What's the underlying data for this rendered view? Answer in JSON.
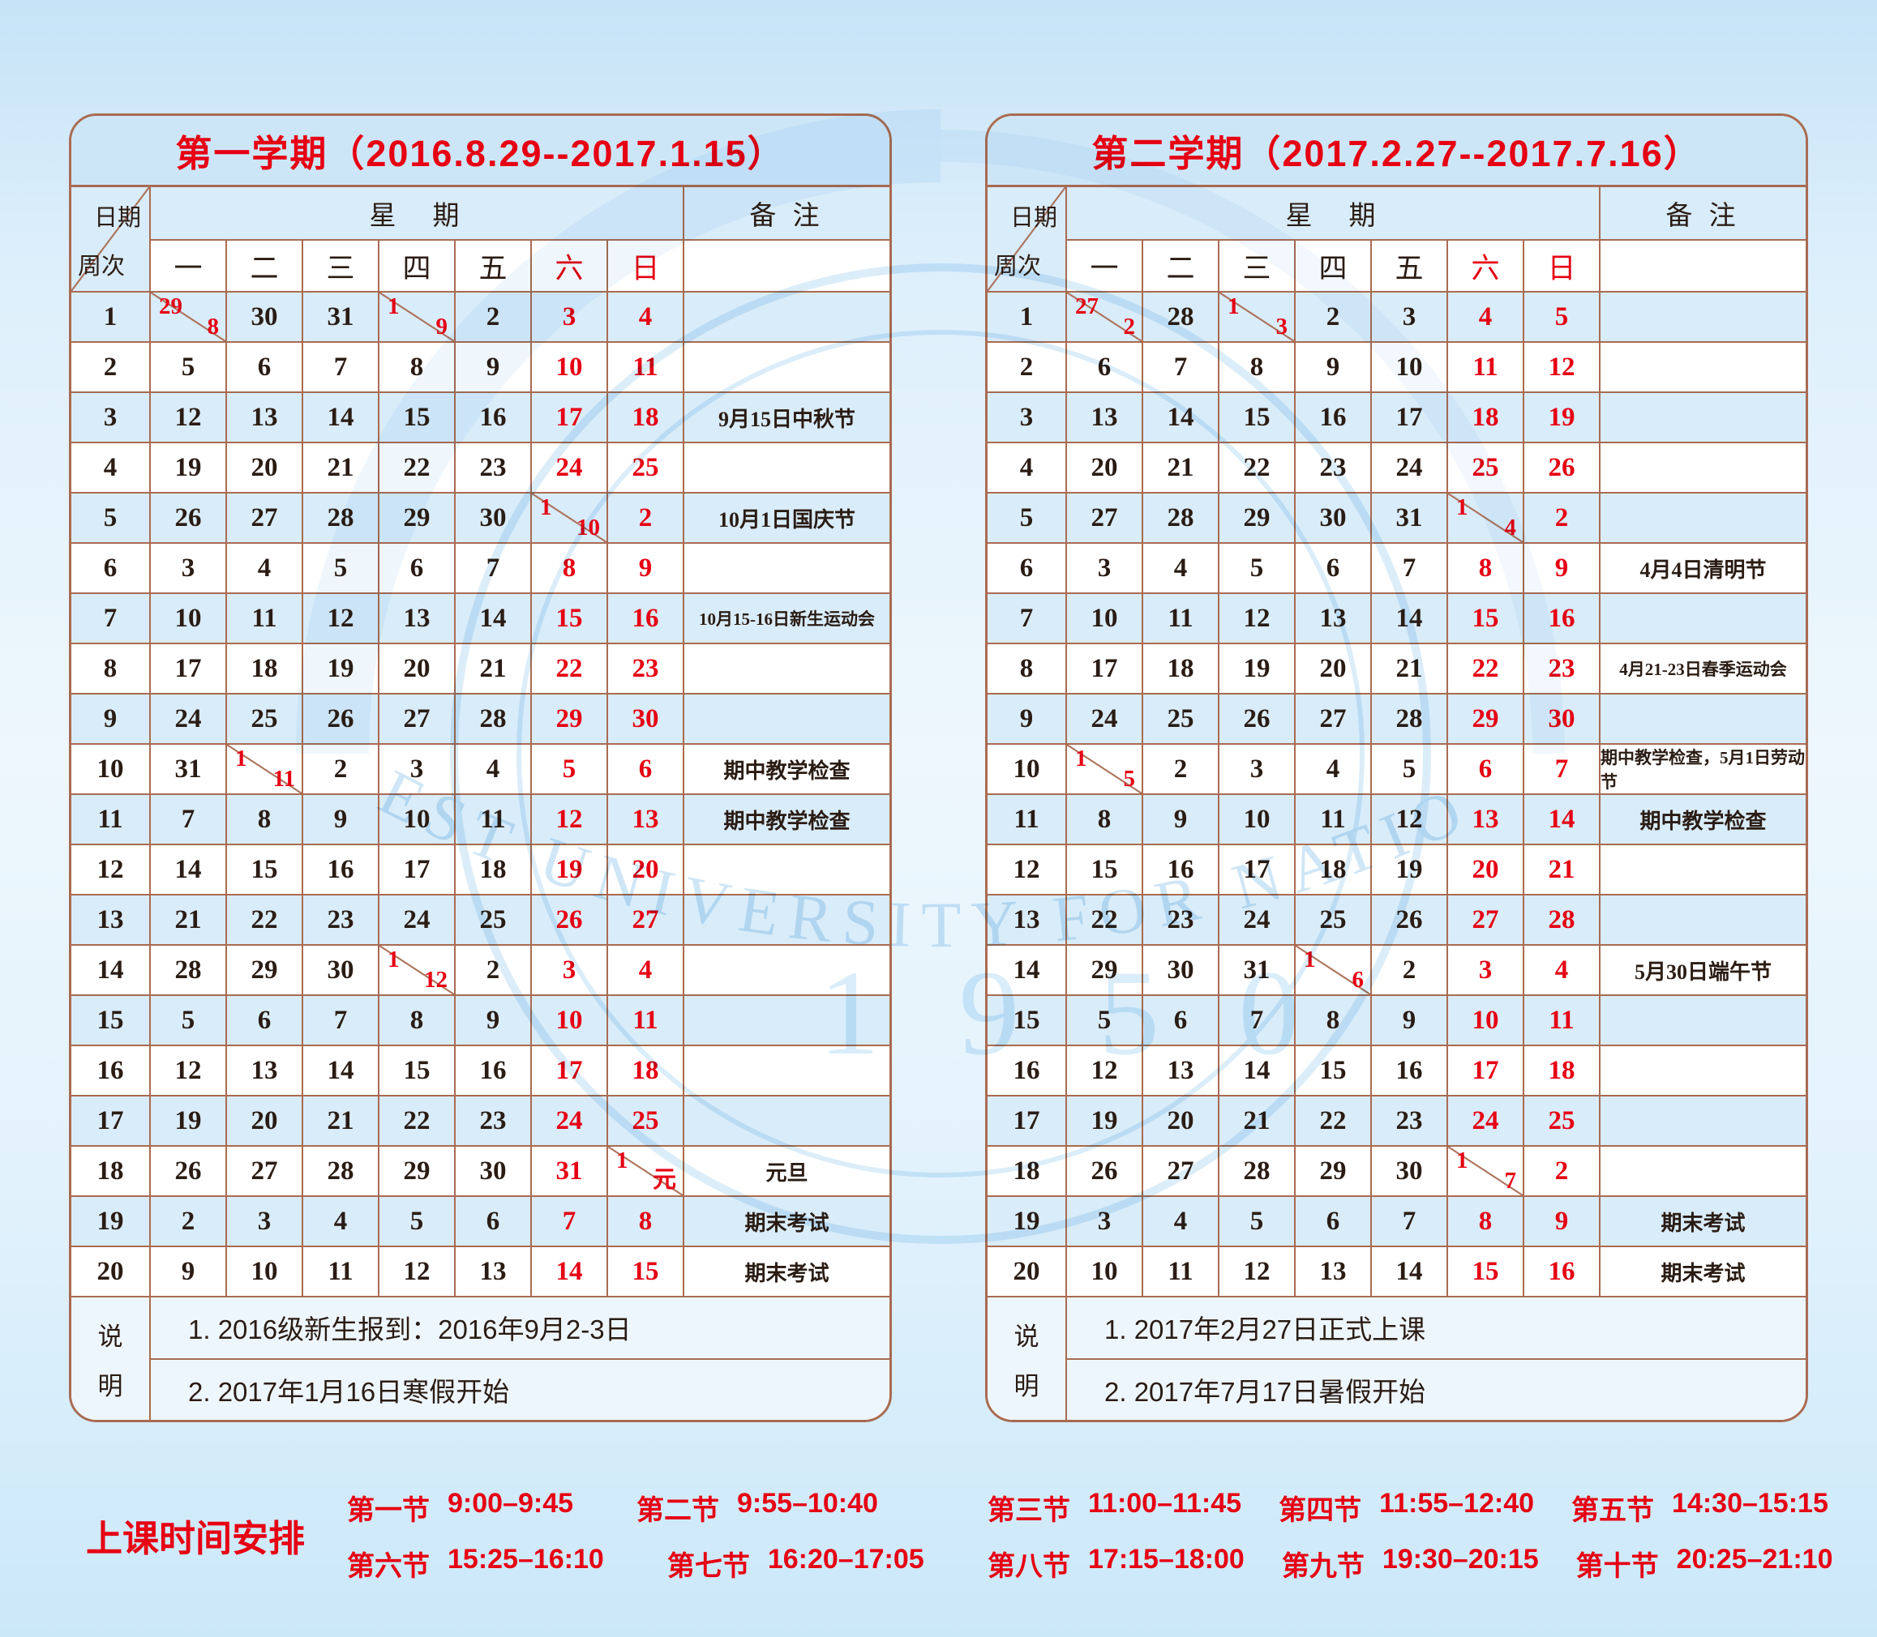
{
  "table_header": {
    "date_label": "日期",
    "week_label": "周次",
    "week_header": "星　期",
    "note_header": "备 注",
    "days": [
      "一",
      "二",
      "三",
      "四",
      "五",
      "六",
      "日"
    ],
    "notes_label_chars": [
      "说",
      "明"
    ]
  },
  "semester1": {
    "title": "第一学期（2016.8.29--2017.1.15）",
    "weeks": [
      {
        "week": "1",
        "days": [
          "29/8",
          "30",
          "31",
          "1/9",
          "2",
          "3",
          "4"
        ],
        "note": ""
      },
      {
        "week": "2",
        "days": [
          "5",
          "6",
          "7",
          "8",
          "9",
          "10",
          "11"
        ],
        "note": ""
      },
      {
        "week": "3",
        "days": [
          "12",
          "13",
          "14",
          "15",
          "16",
          "17",
          "18"
        ],
        "note": "9月15日中秋节"
      },
      {
        "week": "4",
        "days": [
          "19",
          "20",
          "21",
          "22",
          "23",
          "24",
          "25"
        ],
        "note": ""
      },
      {
        "week": "5",
        "days": [
          "26",
          "27",
          "28",
          "29",
          "30",
          "1/10",
          "2"
        ],
        "note": "10月1日国庆节"
      },
      {
        "week": "6",
        "days": [
          "3",
          "4",
          "5",
          "6",
          "7",
          "8",
          "9"
        ],
        "note": ""
      },
      {
        "week": "7",
        "days": [
          "10",
          "11",
          "12",
          "13",
          "14",
          "15",
          "16"
        ],
        "note": "10月15-16日新生运动会"
      },
      {
        "week": "8",
        "days": [
          "17",
          "18",
          "19",
          "20",
          "21",
          "22",
          "23"
        ],
        "note": ""
      },
      {
        "week": "9",
        "days": [
          "24",
          "25",
          "26",
          "27",
          "28",
          "29",
          "30"
        ],
        "note": ""
      },
      {
        "week": "10",
        "days": [
          "31",
          "1/11",
          "2",
          "3",
          "4",
          "5",
          "6"
        ],
        "note": "期中教学检查"
      },
      {
        "week": "11",
        "days": [
          "7",
          "8",
          "9",
          "10",
          "11",
          "12",
          "13"
        ],
        "note": "期中教学检查"
      },
      {
        "week": "12",
        "days": [
          "14",
          "15",
          "16",
          "17",
          "18",
          "19",
          "20"
        ],
        "note": ""
      },
      {
        "week": "13",
        "days": [
          "21",
          "22",
          "23",
          "24",
          "25",
          "26",
          "27"
        ],
        "note": ""
      },
      {
        "week": "14",
        "days": [
          "28",
          "29",
          "30",
          "1/12",
          "2",
          "3",
          "4"
        ],
        "note": ""
      },
      {
        "week": "15",
        "days": [
          "5",
          "6",
          "7",
          "8",
          "9",
          "10",
          "11"
        ],
        "note": ""
      },
      {
        "week": "16",
        "days": [
          "12",
          "13",
          "14",
          "15",
          "16",
          "17",
          "18"
        ],
        "note": ""
      },
      {
        "week": "17",
        "days": [
          "19",
          "20",
          "21",
          "22",
          "23",
          "24",
          "25"
        ],
        "note": ""
      },
      {
        "week": "18",
        "days": [
          "26",
          "27",
          "28",
          "29",
          "30",
          "31",
          "1/元"
        ],
        "note": "元旦"
      },
      {
        "week": "19",
        "days": [
          "2",
          "3",
          "4",
          "5",
          "6",
          "7",
          "8"
        ],
        "note": "期末考试"
      },
      {
        "week": "20",
        "days": [
          "9",
          "10",
          "11",
          "12",
          "13",
          "14",
          "15"
        ],
        "note": "期末考试"
      }
    ],
    "notes": [
      "1. 2016级新生报到：2016年9月2-3日",
      "2. 2017年1月16日寒假开始"
    ]
  },
  "semester2": {
    "title": "第二学期（2017.2.27--2017.7.16）",
    "weeks": [
      {
        "week": "1",
        "days": [
          "27/2",
          "28",
          "1/3",
          "2",
          "3",
          "4",
          "5"
        ],
        "note": ""
      },
      {
        "week": "2",
        "days": [
          "6",
          "7",
          "8",
          "9",
          "10",
          "11",
          "12"
        ],
        "note": ""
      },
      {
        "week": "3",
        "days": [
          "13",
          "14",
          "15",
          "16",
          "17",
          "18",
          "19"
        ],
        "note": ""
      },
      {
        "week": "4",
        "days": [
          "20",
          "21",
          "22",
          "23",
          "24",
          "25",
          "26"
        ],
        "note": ""
      },
      {
        "week": "5",
        "days": [
          "27",
          "28",
          "29",
          "30",
          "31",
          "1/4",
          "2"
        ],
        "note": ""
      },
      {
        "week": "6",
        "days": [
          "3",
          "4",
          "5",
          "6",
          "7",
          "8",
          "9"
        ],
        "note": "4月4日清明节"
      },
      {
        "week": "7",
        "days": [
          "10",
          "11",
          "12",
          "13",
          "14",
          "15",
          "16"
        ],
        "note": ""
      },
      {
        "week": "8",
        "days": [
          "17",
          "18",
          "19",
          "20",
          "21",
          "22",
          "23"
        ],
        "note": "4月21-23日春季运动会"
      },
      {
        "week": "9",
        "days": [
          "24",
          "25",
          "26",
          "27",
          "28",
          "29",
          "30"
        ],
        "note": ""
      },
      {
        "week": "10",
        "days": [
          "1/5",
          "2",
          "3",
          "4",
          "5",
          "6",
          "7"
        ],
        "note": "期中教学检查，5月1日劳动节"
      },
      {
        "week": "11",
        "days": [
          "8",
          "9",
          "10",
          "11",
          "12",
          "13",
          "14"
        ],
        "note": "期中教学检查"
      },
      {
        "week": "12",
        "days": [
          "15",
          "16",
          "17",
          "18",
          "19",
          "20",
          "21"
        ],
        "note": ""
      },
      {
        "week": "13",
        "days": [
          "22",
          "23",
          "24",
          "25",
          "26",
          "27",
          "28"
        ],
        "note": ""
      },
      {
        "week": "14",
        "days": [
          "29",
          "30",
          "31",
          "1/6",
          "2",
          "3",
          "4"
        ],
        "note": "5月30日端午节"
      },
      {
        "week": "15",
        "days": [
          "5",
          "6",
          "7",
          "8",
          "9",
          "10",
          "11"
        ],
        "note": ""
      },
      {
        "week": "16",
        "days": [
          "12",
          "13",
          "14",
          "15",
          "16",
          "17",
          "18"
        ],
        "note": ""
      },
      {
        "week": "17",
        "days": [
          "19",
          "20",
          "21",
          "22",
          "23",
          "24",
          "25"
        ],
        "note": ""
      },
      {
        "week": "18",
        "days": [
          "26",
          "27",
          "28",
          "29",
          "30",
          "1/7",
          "2"
        ],
        "note": ""
      },
      {
        "week": "19",
        "days": [
          "3",
          "4",
          "5",
          "6",
          "7",
          "8",
          "9"
        ],
        "note": "期末考试"
      },
      {
        "week": "20",
        "days": [
          "10",
          "11",
          "12",
          "13",
          "14",
          "15",
          "16"
        ],
        "note": "期末考试"
      }
    ],
    "notes": [
      "1. 2017年2月27日正式上课",
      "2. 2017年7月17日暑假开始"
    ]
  },
  "schedule": {
    "label": "上课时间安排",
    "rows_left": [
      [
        {
          "name": "第一节",
          "time": "9:00–9:45"
        },
        {
          "name": "第二节",
          "time": "9:55–10:40"
        }
      ],
      [
        {
          "name": "第六节",
          "time": "15:25–16:10"
        },
        {
          "name": "第七节",
          "time": "16:20–17:05"
        }
      ]
    ],
    "rows_right": [
      [
        {
          "name": "第三节",
          "time": "11:00–11:45"
        },
        {
          "name": "第四节",
          "time": "11:55–12:40"
        },
        {
          "name": "第五节",
          "time": "14:30–15:15"
        }
      ],
      [
        {
          "name": "第八节",
          "time": "17:15–18:00"
        },
        {
          "name": "第九节",
          "time": "19:30–20:15"
        },
        {
          "name": "第十节",
          "time": "20:25–21:10"
        }
      ]
    ]
  },
  "watermark": {
    "ring_text": "NORTHWEST UNIVERSITY FOR NATIONALITIES",
    "year_text": "1 9 5 0"
  },
  "colors": {
    "accent_red": "#e60013",
    "border_brown": "#a96b52",
    "row_blue": "#d9ecf9",
    "title_bar_blue": "#cde6f7",
    "ink": "#2a1c14",
    "watermark_blue": "#d7ecf9"
  }
}
